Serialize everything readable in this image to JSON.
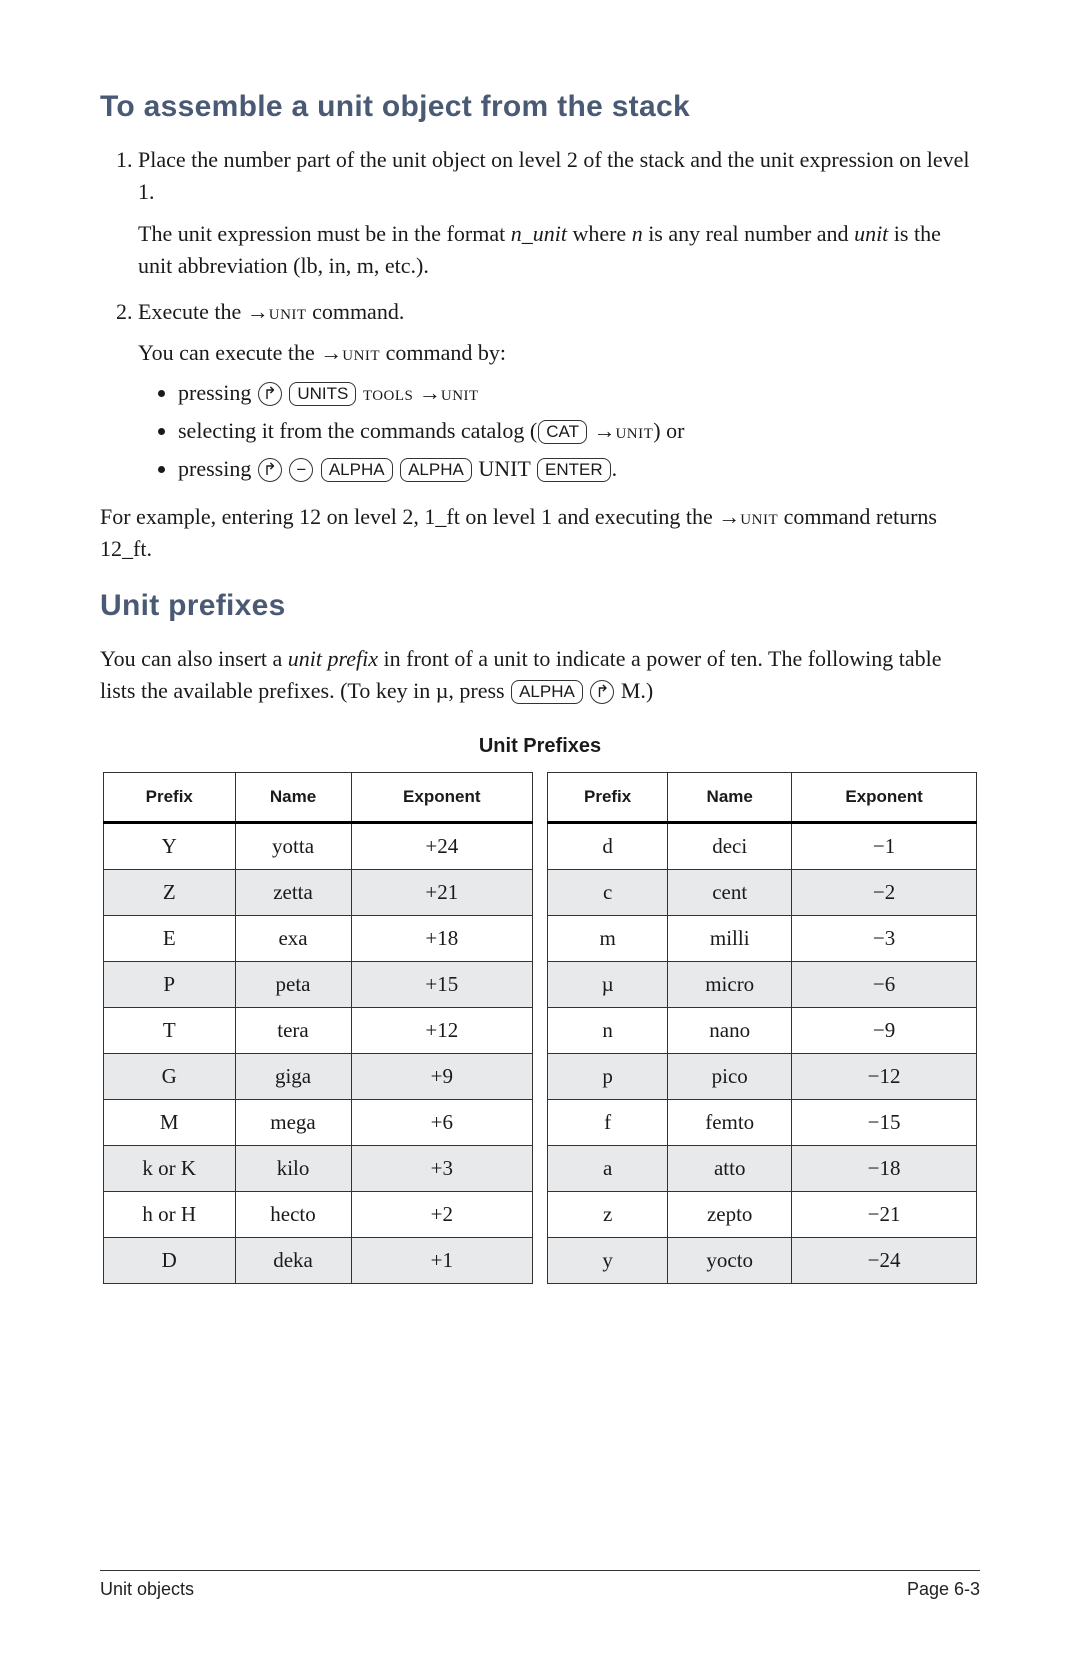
{
  "heading1": "To assemble a unit object from the stack",
  "step1_a": "Place the number part of the unit object on level 2 of the stack and the unit expression on level 1.",
  "step1_b_pre": "The unit expression must be in the format ",
  "step1_b_fmt": "n_unit",
  "step1_b_mid": " where ",
  "step1_b_n": "n",
  "step1_b_mid2": " is any real number and ",
  "step1_b_unit": "unit",
  "step1_b_post": " is the unit abbreviation (lb, in, m, etc.).",
  "step2_a_pre": "Execute the →",
  "step2_a_sc": "unit",
  "step2_a_post": " command.",
  "step2_b_pre": "You can execute the →",
  "step2_b_sc": "unit",
  "step2_b_post": " command by:",
  "bul1_pre": "pressing ",
  "bul1_k1": "↱",
  "bul1_k2": "UNITS",
  "bul1_mid": " ",
  "bul1_sc1": "tools",
  "bul1_arrow": " →",
  "bul1_sc2": "unit",
  "bul2_pre": "selecting it from the commands catalog (",
  "bul2_k1": "CAT",
  "bul2_mid": " →",
  "bul2_sc": "unit",
  "bul2_post": ") or",
  "bul3_pre": "pressing ",
  "bul3_k1": "↱",
  "bul3_k2": "−",
  "bul3_k3": "ALPHA",
  "bul3_k4": "ALPHA",
  "bul3_mid": " UNIT ",
  "bul3_k5": "ENTER",
  "bul3_post": ".",
  "example_pre": "For example, entering 12 on level 2, 1_ft on level 1 and executing the →",
  "example_sc": "unit",
  "example_post": " command returns 12_ft.",
  "heading2": "Unit prefixes",
  "para2_pre": "You can also insert a ",
  "para2_ital": "unit prefix",
  "para2_mid": " in front of a unit to indicate a power of ten. The following table lists the available prefixes. (To key in µ, press ",
  "para2_k1": "ALPHA",
  "para2_k2": "↱",
  "para2_post": " M.)",
  "table_title": "Unit Prefixes",
  "headers": {
    "prefix": "Prefix",
    "name": "Name",
    "exponent": "Exponent"
  },
  "left_rows": [
    {
      "p": "Y",
      "n": "yotta",
      "e": "+24",
      "shade": false
    },
    {
      "p": "Z",
      "n": "zetta",
      "e": "+21",
      "shade": true
    },
    {
      "p": "E",
      "n": "exa",
      "e": "+18",
      "shade": false
    },
    {
      "p": "P",
      "n": "peta",
      "e": "+15",
      "shade": true
    },
    {
      "p": "T",
      "n": "tera",
      "e": "+12",
      "shade": false
    },
    {
      "p": "G",
      "n": "giga",
      "e": "+9",
      "shade": true
    },
    {
      "p": "M",
      "n": "mega",
      "e": "+6",
      "shade": false
    },
    {
      "p": "k or K",
      "n": "kilo",
      "e": "+3",
      "shade": true
    },
    {
      "p": "h or H",
      "n": "hecto",
      "e": "+2",
      "shade": false
    },
    {
      "p": "D",
      "n": "deka",
      "e": "+1",
      "shade": true
    }
  ],
  "right_rows": [
    {
      "p": "d",
      "n": "deci",
      "e": "−1",
      "shade": false
    },
    {
      "p": "c",
      "n": "cent",
      "e": "−2",
      "shade": true
    },
    {
      "p": "m",
      "n": "milli",
      "e": "−3",
      "shade": false
    },
    {
      "p": "µ",
      "n": "micro",
      "e": "−6",
      "shade": true
    },
    {
      "p": "n",
      "n": "nano",
      "e": "−9",
      "shade": false
    },
    {
      "p": "p",
      "n": "pico",
      "e": "−12",
      "shade": true
    },
    {
      "p": "f",
      "n": "femto",
      "e": "−15",
      "shade": false
    },
    {
      "p": "a",
      "n": "atto",
      "e": "−18",
      "shade": true
    },
    {
      "p": "z",
      "n": "zepto",
      "e": "−21",
      "shade": false
    },
    {
      "p": "y",
      "n": "yocto",
      "e": "−24",
      "shade": true
    }
  ],
  "footer_left": "Unit objects",
  "footer_right": "Page 6-3"
}
